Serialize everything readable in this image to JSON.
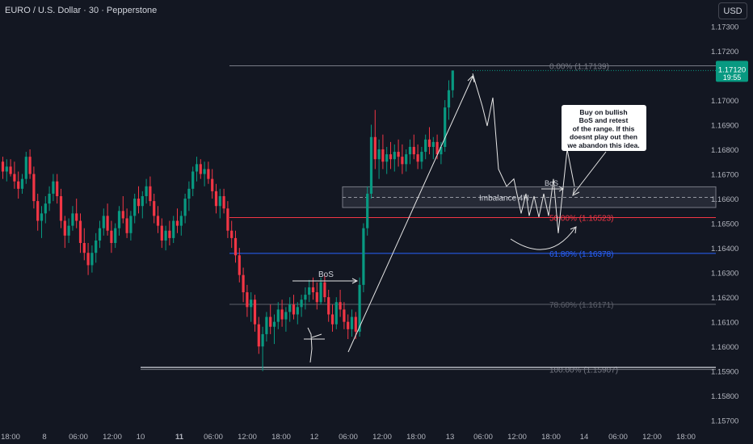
{
  "header": {
    "title": "EURO / U.S. Dollar · 30 · Pepperstone",
    "currency_button": "USD"
  },
  "colors": {
    "background": "#131722",
    "bullish": "#089981",
    "bearish": "#f23645",
    "axis_text": "#b2b5be",
    "fib_line": "#787b86",
    "fib_50": "#f23645",
    "fib_618": "#2962ff"
  },
  "chart_data": {
    "type": "candlestick",
    "title": "EURO / U.S. Dollar · 30 · Pepperstone",
    "y_axis": {
      "ticks": [
        "1.17300",
        "1.17200",
        "1.17000",
        "1.16900",
        "1.16800",
        "1.16700",
        "1.16600",
        "1.16500",
        "1.16400",
        "1.16300",
        "1.16200",
        "1.16100",
        "1.16000",
        "1.15900",
        "1.15800",
        "1.15700"
      ],
      "ylim": [
        1.1565,
        1.1738
      ]
    },
    "x_axis": {
      "ticks": [
        "18:00",
        "8",
        "06:00",
        "12:00",
        "10",
        "11",
        "06:00",
        "12:00",
        "18:00",
        "12",
        "06:00",
        "12:00",
        "18:00",
        "13",
        "06:00",
        "12:00",
        "18:00",
        "14",
        "06:00",
        "12:00",
        "18:00"
      ],
      "bold_ticks": [
        "11"
      ]
    },
    "current_price": {
      "value": "1.17120",
      "countdown": "19:55"
    },
    "fibonacci": [
      {
        "label": "0.00% (1.17139)",
        "level": 1.17139
      },
      {
        "label": "50.00% (1.16523)",
        "level": 1.16523
      },
      {
        "label": "61.80% (1.16378)",
        "level": 1.16378
      },
      {
        "label": "78.60% (1.16171)",
        "level": 1.16171
      },
      {
        "label": "100.00% (1.15907)",
        "level": 1.15907
      }
    ],
    "horizontal_line": 1.15915,
    "imbalance_zone": {
      "label": "Imbalance 4H",
      "top": 1.16648,
      "bottom": 1.16564,
      "mid": 1.16605
    },
    "annotations": {
      "bos_left": "BoS",
      "bos_right": "BoS",
      "callout": [
        "Buy on bullish",
        "BoS and retest",
        "of the range. If this",
        "doesnt play out then",
        "we abandon this idea."
      ]
    },
    "ohlc": [
      [
        1.1675,
        1.1677,
        1.1668,
        1.1671
      ],
      [
        1.1671,
        1.1676,
        1.1667,
        1.1673
      ],
      [
        1.1673,
        1.1676,
        1.1669,
        1.167
      ],
      [
        1.167,
        1.1675,
        1.1664,
        1.1667
      ],
      [
        1.1667,
        1.1671,
        1.166,
        1.1664
      ],
      [
        1.1664,
        1.167,
        1.1662,
        1.1668
      ],
      [
        1.1668,
        1.1679,
        1.1666,
        1.1677
      ],
      [
        1.1677,
        1.168,
        1.1668,
        1.167
      ],
      [
        1.167,
        1.1673,
        1.1656,
        1.1659
      ],
      [
        1.1659,
        1.1662,
        1.1647,
        1.1651
      ],
      [
        1.1651,
        1.1657,
        1.1644,
        1.1654
      ],
      [
        1.1654,
        1.1661,
        1.165,
        1.1658
      ],
      [
        1.1658,
        1.1665,
        1.1655,
        1.1662
      ],
      [
        1.1662,
        1.167,
        1.1659,
        1.1667
      ],
      [
        1.1667,
        1.167,
        1.1658,
        1.1661
      ],
      [
        1.1661,
        1.1664,
        1.1648,
        1.1651
      ],
      [
        1.1651,
        1.1653,
        1.164,
        1.1645
      ],
      [
        1.1645,
        1.1652,
        1.1642,
        1.1649
      ],
      [
        1.1649,
        1.1657,
        1.1647,
        1.1654
      ],
      [
        1.1654,
        1.166,
        1.1648,
        1.1651
      ],
      [
        1.1651,
        1.1654,
        1.1638,
        1.1642
      ],
      [
        1.1642,
        1.1648,
        1.1635,
        1.1638
      ],
      [
        1.1638,
        1.1642,
        1.1629,
        1.1633
      ],
      [
        1.1633,
        1.1641,
        1.163,
        1.1638
      ],
      [
        1.1638,
        1.1646,
        1.1634,
        1.1643
      ],
      [
        1.1643,
        1.1651,
        1.164,
        1.1648
      ],
      [
        1.1648,
        1.1656,
        1.1645,
        1.1653
      ],
      [
        1.1653,
        1.1658,
        1.1645,
        1.1647
      ],
      [
        1.1647,
        1.1651,
        1.1638,
        1.1642
      ],
      [
        1.1642,
        1.165,
        1.164,
        1.1648
      ],
      [
        1.1648,
        1.1657,
        1.1645,
        1.1655
      ],
      [
        1.1655,
        1.1661,
        1.165,
        1.1652
      ],
      [
        1.1652,
        1.1656,
        1.1644,
        1.1646
      ],
      [
        1.1646,
        1.1655,
        1.1643,
        1.1653
      ],
      [
        1.1653,
        1.1662,
        1.165,
        1.166
      ],
      [
        1.166,
        1.1665,
        1.1654,
        1.1657
      ],
      [
        1.1657,
        1.1663,
        1.1652,
        1.1661
      ],
      [
        1.1661,
        1.1668,
        1.1658,
        1.1665
      ],
      [
        1.1665,
        1.1669,
        1.1657,
        1.1659
      ],
      [
        1.1659,
        1.1662,
        1.165,
        1.1653
      ],
      [
        1.1653,
        1.1657,
        1.1646,
        1.1649
      ],
      [
        1.1649,
        1.1652,
        1.164,
        1.1643
      ],
      [
        1.1643,
        1.1649,
        1.1639,
        1.1647
      ],
      [
        1.1647,
        1.1651,
        1.1641,
        1.1644
      ],
      [
        1.1644,
        1.1653,
        1.1642,
        1.1651
      ],
      [
        1.1651,
        1.1656,
        1.1646,
        1.1649
      ],
      [
        1.1649,
        1.1655,
        1.1645,
        1.1653
      ],
      [
        1.1653,
        1.1662,
        1.165,
        1.166
      ],
      [
        1.166,
        1.1667,
        1.1655,
        1.1664
      ],
      [
        1.1664,
        1.1673,
        1.1661,
        1.1671
      ],
      [
        1.1671,
        1.1677,
        1.1667,
        1.1674
      ],
      [
        1.1674,
        1.1676,
        1.1668,
        1.167
      ],
      [
        1.167,
        1.1675,
        1.1665,
        1.1672
      ],
      [
        1.1672,
        1.1675,
        1.1666,
        1.1668
      ],
      [
        1.1668,
        1.1672,
        1.166,
        1.1663
      ],
      [
        1.1663,
        1.1666,
        1.1654,
        1.1657
      ],
      [
        1.1657,
        1.1664,
        1.1652,
        1.1661
      ],
      [
        1.1661,
        1.1664,
        1.1654,
        1.1656
      ],
      [
        1.1656,
        1.1659,
        1.1644,
        1.1647
      ],
      [
        1.1647,
        1.1651,
        1.164,
        1.1644
      ],
      [
        1.1644,
        1.1647,
        1.1634,
        1.1637
      ],
      [
        1.1637,
        1.164,
        1.1626,
        1.1629
      ],
      [
        1.1629,
        1.1632,
        1.1618,
        1.1622
      ],
      [
        1.1622,
        1.1625,
        1.1612,
        1.1616
      ],
      [
        1.1616,
        1.1622,
        1.161,
        1.1619
      ],
      [
        1.1619,
        1.1621,
        1.1606,
        1.1609
      ],
      [
        1.1609,
        1.1612,
        1.1597,
        1.16
      ],
      [
        1.16,
        1.1608,
        1.159,
        1.1605
      ],
      [
        1.1605,
        1.1614,
        1.1602,
        1.1612
      ],
      [
        1.1612,
        1.1617,
        1.1605,
        1.1608
      ],
      [
        1.1608,
        1.1613,
        1.1601,
        1.161
      ],
      [
        1.161,
        1.1618,
        1.1607,
        1.1615
      ],
      [
        1.1615,
        1.1619,
        1.1608,
        1.1611
      ],
      [
        1.1611,
        1.1616,
        1.1606,
        1.1614
      ],
      [
        1.1614,
        1.162,
        1.161,
        1.1617
      ],
      [
        1.1617,
        1.1621,
        1.1611,
        1.1613
      ],
      [
        1.1613,
        1.1618,
        1.1609,
        1.1616
      ],
      [
        1.1616,
        1.1621,
        1.1612,
        1.1619
      ],
      [
        1.1619,
        1.1624,
        1.1615,
        1.1621
      ],
      [
        1.1621,
        1.1627,
        1.1618,
        1.1624
      ],
      [
        1.1624,
        1.1628,
        1.1619,
        1.1622
      ],
      [
        1.1622,
        1.1626,
        1.1615,
        1.1618
      ],
      [
        1.1618,
        1.1628,
        1.1617,
        1.1626
      ],
      [
        1.1626,
        1.1629,
        1.1618,
        1.162
      ],
      [
        1.162,
        1.1623,
        1.161,
        1.1613
      ],
      [
        1.1613,
        1.1617,
        1.1606,
        1.1609
      ],
      [
        1.1609,
        1.162,
        1.1607,
        1.1618
      ],
      [
        1.1618,
        1.1623,
        1.1612,
        1.1615
      ],
      [
        1.1615,
        1.1618,
        1.1607,
        1.161
      ],
      [
        1.161,
        1.1613,
        1.1603,
        1.1607
      ],
      [
        1.1607,
        1.1615,
        1.1604,
        1.1612
      ],
      [
        1.1612,
        1.1614,
        1.1603,
        1.1606
      ],
      [
        1.1606,
        1.1628,
        1.1604,
        1.1625
      ],
      [
        1.1625,
        1.165,
        1.1622,
        1.1648
      ],
      [
        1.1648,
        1.1665,
        1.1645,
        1.1662
      ],
      [
        1.1662,
        1.169,
        1.166,
        1.1685
      ],
      [
        1.1685,
        1.1696,
        1.1672,
        1.1676
      ],
      [
        1.1676,
        1.1684,
        1.1668,
        1.168
      ],
      [
        1.168,
        1.1686,
        1.1672,
        1.1675
      ],
      [
        1.1675,
        1.1681,
        1.167,
        1.1678
      ],
      [
        1.1678,
        1.1683,
        1.1672,
        1.1676
      ],
      [
        1.1676,
        1.1682,
        1.1671,
        1.1679
      ],
      [
        1.1679,
        1.1684,
        1.1673,
        1.1677
      ],
      [
        1.1677,
        1.1682,
        1.167,
        1.1674
      ],
      [
        1.1674,
        1.168,
        1.1671,
        1.1678
      ],
      [
        1.1678,
        1.1684,
        1.1674,
        1.1681
      ],
      [
        1.1681,
        1.1686,
        1.1676,
        1.1678
      ],
      [
        1.1678,
        1.1682,
        1.1672,
        1.1675
      ],
      [
        1.1675,
        1.1681,
        1.1672,
        1.1679
      ],
      [
        1.1679,
        1.1686,
        1.1676,
        1.1684
      ],
      [
        1.1684,
        1.1689,
        1.1678,
        1.1681
      ],
      [
        1.1681,
        1.1685,
        1.1676,
        1.1683
      ],
      [
        1.1683,
        1.1686,
        1.1676,
        1.1678
      ],
      [
        1.1678,
        1.1683,
        1.1674,
        1.1681
      ],
      [
        1.1681,
        1.17,
        1.1679,
        1.1697
      ],
      [
        1.1697,
        1.1708,
        1.1692,
        1.1704
      ],
      [
        1.1704,
        1.1712,
        1.1701,
        1.1712
      ]
    ],
    "projection_path": [
      [
        1.17108
      ],
      [
        1.16975
      ],
      [
        1.16895
      ],
      [
        1.1701
      ],
      [
        1.1672
      ],
      [
        1.1665
      ],
      [
        1.1668
      ],
      [
        1.1654
      ],
      [
        1.1662
      ],
      [
        1.1653
      ],
      [
        1.1661
      ],
      [
        1.16525
      ],
      [
        1.1662
      ],
      [
        1.1653
      ],
      [
        1.1668
      ],
      [
        1.1646
      ],
      [
        1.168
      ],
      [
        1.1665
      ]
    ]
  }
}
